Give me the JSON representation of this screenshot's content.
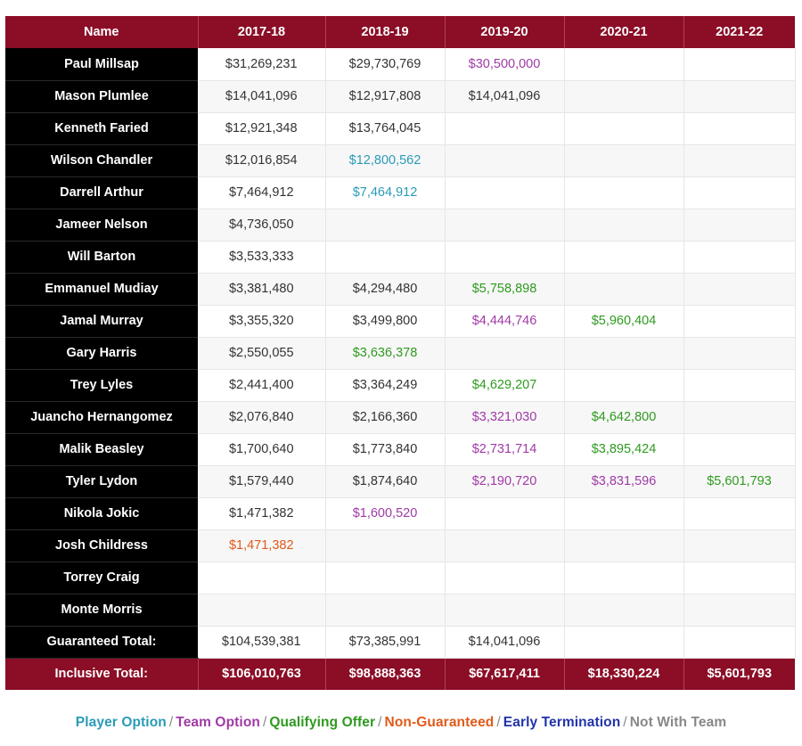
{
  "colors": {
    "header_bg": "#8b0d26",
    "name_bg": "#000000",
    "player_option": "#2a9bb8",
    "team_option": "#a03aa6",
    "qualifying_offer": "#2e9a1f",
    "non_guaranteed": "#e05a1a",
    "early_termination": "#2233aa",
    "not_with_team": "#888888",
    "default": "#333333"
  },
  "table": {
    "headers": [
      "Name",
      "2017-18",
      "2018-19",
      "2019-20",
      "2020-21",
      "2021-22"
    ],
    "rows": [
      {
        "name": "Paul Millsap",
        "cells": [
          {
            "v": "$31,269,231",
            "t": "default"
          },
          {
            "v": "$29,730,769",
            "t": "default"
          },
          {
            "v": "$30,500,000",
            "t": "team_option"
          },
          {
            "v": "",
            "t": "default"
          },
          {
            "v": "",
            "t": "default"
          }
        ]
      },
      {
        "name": "Mason Plumlee",
        "cells": [
          {
            "v": "$14,041,096",
            "t": "default"
          },
          {
            "v": "$12,917,808",
            "t": "default"
          },
          {
            "v": "$14,041,096",
            "t": "default"
          },
          {
            "v": "",
            "t": "default"
          },
          {
            "v": "",
            "t": "default"
          }
        ]
      },
      {
        "name": "Kenneth Faried",
        "cells": [
          {
            "v": "$12,921,348",
            "t": "default"
          },
          {
            "v": "$13,764,045",
            "t": "default"
          },
          {
            "v": "",
            "t": "default"
          },
          {
            "v": "",
            "t": "default"
          },
          {
            "v": "",
            "t": "default"
          }
        ]
      },
      {
        "name": "Wilson Chandler",
        "cells": [
          {
            "v": "$12,016,854",
            "t": "default"
          },
          {
            "v": "$12,800,562",
            "t": "player_option"
          },
          {
            "v": "",
            "t": "default"
          },
          {
            "v": "",
            "t": "default"
          },
          {
            "v": "",
            "t": "default"
          }
        ]
      },
      {
        "name": "Darrell Arthur",
        "cells": [
          {
            "v": "$7,464,912",
            "t": "default"
          },
          {
            "v": "$7,464,912",
            "t": "player_option"
          },
          {
            "v": "",
            "t": "default"
          },
          {
            "v": "",
            "t": "default"
          },
          {
            "v": "",
            "t": "default"
          }
        ]
      },
      {
        "name": "Jameer Nelson",
        "cells": [
          {
            "v": "$4,736,050",
            "t": "default"
          },
          {
            "v": "",
            "t": "default"
          },
          {
            "v": "",
            "t": "default"
          },
          {
            "v": "",
            "t": "default"
          },
          {
            "v": "",
            "t": "default"
          }
        ]
      },
      {
        "name": "Will Barton",
        "cells": [
          {
            "v": "$3,533,333",
            "t": "default"
          },
          {
            "v": "",
            "t": "default"
          },
          {
            "v": "",
            "t": "default"
          },
          {
            "v": "",
            "t": "default"
          },
          {
            "v": "",
            "t": "default"
          }
        ]
      },
      {
        "name": "Emmanuel Mudiay",
        "cells": [
          {
            "v": "$3,381,480",
            "t": "default"
          },
          {
            "v": "$4,294,480",
            "t": "default"
          },
          {
            "v": "$5,758,898",
            "t": "qualifying_offer"
          },
          {
            "v": "",
            "t": "default"
          },
          {
            "v": "",
            "t": "default"
          }
        ]
      },
      {
        "name": "Jamal Murray",
        "cells": [
          {
            "v": "$3,355,320",
            "t": "default"
          },
          {
            "v": "$3,499,800",
            "t": "default"
          },
          {
            "v": "$4,444,746",
            "t": "team_option"
          },
          {
            "v": "$5,960,404",
            "t": "qualifying_offer"
          },
          {
            "v": "",
            "t": "default"
          }
        ]
      },
      {
        "name": "Gary Harris",
        "cells": [
          {
            "v": "$2,550,055",
            "t": "default"
          },
          {
            "v": "$3,636,378",
            "t": "qualifying_offer"
          },
          {
            "v": "",
            "t": "default"
          },
          {
            "v": "",
            "t": "default"
          },
          {
            "v": "",
            "t": "default"
          }
        ]
      },
      {
        "name": "Trey Lyles",
        "cells": [
          {
            "v": "$2,441,400",
            "t": "default"
          },
          {
            "v": "$3,364,249",
            "t": "default"
          },
          {
            "v": "$4,629,207",
            "t": "qualifying_offer"
          },
          {
            "v": "",
            "t": "default"
          },
          {
            "v": "",
            "t": "default"
          }
        ]
      },
      {
        "name": "Juancho Hernangomez",
        "cells": [
          {
            "v": "$2,076,840",
            "t": "default"
          },
          {
            "v": "$2,166,360",
            "t": "default"
          },
          {
            "v": "$3,321,030",
            "t": "team_option"
          },
          {
            "v": "$4,642,800",
            "t": "qualifying_offer"
          },
          {
            "v": "",
            "t": "default"
          }
        ]
      },
      {
        "name": "Malik Beasley",
        "cells": [
          {
            "v": "$1,700,640",
            "t": "default"
          },
          {
            "v": "$1,773,840",
            "t": "default"
          },
          {
            "v": "$2,731,714",
            "t": "team_option"
          },
          {
            "v": "$3,895,424",
            "t": "qualifying_offer"
          },
          {
            "v": "",
            "t": "default"
          }
        ]
      },
      {
        "name": "Tyler Lydon",
        "cells": [
          {
            "v": "$1,579,440",
            "t": "default"
          },
          {
            "v": "$1,874,640",
            "t": "default"
          },
          {
            "v": "$2,190,720",
            "t": "team_option"
          },
          {
            "v": "$3,831,596",
            "t": "team_option"
          },
          {
            "v": "$5,601,793",
            "t": "qualifying_offer"
          }
        ]
      },
      {
        "name": "Nikola Jokic",
        "cells": [
          {
            "v": "$1,471,382",
            "t": "default"
          },
          {
            "v": "$1,600,520",
            "t": "team_option"
          },
          {
            "v": "",
            "t": "default"
          },
          {
            "v": "",
            "t": "default"
          },
          {
            "v": "",
            "t": "default"
          }
        ]
      },
      {
        "name": "Josh Childress",
        "cells": [
          {
            "v": "$1,471,382",
            "t": "non_guaranteed"
          },
          {
            "v": "",
            "t": "default"
          },
          {
            "v": "",
            "t": "default"
          },
          {
            "v": "",
            "t": "default"
          },
          {
            "v": "",
            "t": "default"
          }
        ]
      },
      {
        "name": "Torrey Craig",
        "cells": [
          {
            "v": "",
            "t": "default"
          },
          {
            "v": "",
            "t": "default"
          },
          {
            "v": "",
            "t": "default"
          },
          {
            "v": "",
            "t": "default"
          },
          {
            "v": "",
            "t": "default"
          }
        ]
      },
      {
        "name": "Monte Morris",
        "cells": [
          {
            "v": "",
            "t": "default"
          },
          {
            "v": "",
            "t": "default"
          },
          {
            "v": "",
            "t": "default"
          },
          {
            "v": "",
            "t": "default"
          },
          {
            "v": "",
            "t": "default"
          }
        ]
      },
      {
        "name": "Guaranteed Total:",
        "cells": [
          {
            "v": "$104,539,381",
            "t": "default"
          },
          {
            "v": "$73,385,991",
            "t": "default"
          },
          {
            "v": "$14,041,096",
            "t": "default"
          },
          {
            "v": "",
            "t": "default"
          },
          {
            "v": "",
            "t": "default"
          }
        ]
      }
    ],
    "footer": {
      "label": "Inclusive Total:",
      "values": [
        "$106,010,763",
        "$98,888,363",
        "$67,617,411",
        "$18,330,224",
        "$5,601,793"
      ]
    }
  },
  "legend": {
    "separator": "/",
    "items": [
      {
        "label": "Player Option",
        "t": "player_option"
      },
      {
        "label": "Team Option",
        "t": "team_option"
      },
      {
        "label": "Qualifying Offer",
        "t": "qualifying_offer"
      },
      {
        "label": "Non-Guaranteed",
        "t": "non_guaranteed"
      },
      {
        "label": "Early Termination",
        "t": "early_termination"
      },
      {
        "label": "Not With Team",
        "t": "not_with_team"
      }
    ]
  }
}
